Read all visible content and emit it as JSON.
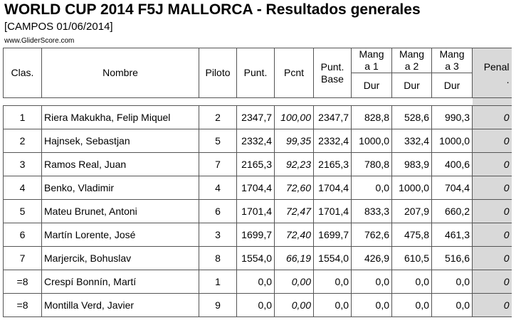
{
  "title": "WORLD CUP 2014 F5J MALLORCA - Resultados generales",
  "subtitle": "[CAMPOS 01/06/2014]",
  "site": "www.GliderScore.com",
  "headers": {
    "clas": "Clas.",
    "nombre": "Nombre",
    "piloto": "Piloto",
    "punt": "Punt.",
    "pcnt": "Pcnt",
    "punt_base_1": "Punt.",
    "punt_base_2": "Base",
    "manga1_a": "Mang",
    "manga1_b": "a 1",
    "manga2_a": "Mang",
    "manga2_b": "a 2",
    "manga3_a": "Mang",
    "manga3_b": "a 3",
    "dur": "Dur",
    "penal_a": "Penal",
    "penal_b": "."
  },
  "rows": [
    {
      "clas": "1",
      "nombre": "Riera Makukha, Felip Miquel",
      "piloto": "2",
      "punt": "2347,7",
      "pcnt": "100,00",
      "base": "2347,7",
      "m1": "828,8",
      "m2": "528,6",
      "m3": "990,3",
      "penal": "0"
    },
    {
      "clas": "2",
      "nombre": "Hajnsek, Sebastjan",
      "piloto": "5",
      "punt": "2332,4",
      "pcnt": "99,35",
      "base": "2332,4",
      "m1": "1000,0",
      "m2": "332,4",
      "m3": "1000,0",
      "penal": "0"
    },
    {
      "clas": "3",
      "nombre": "Ramos Real, Juan",
      "piloto": "7",
      "punt": "2165,3",
      "pcnt": "92,23",
      "base": "2165,3",
      "m1": "780,8",
      "m2": "983,9",
      "m3": "400,6",
      "penal": "0"
    },
    {
      "clas": "4",
      "nombre": "Benko, Vladimir",
      "piloto": "4",
      "punt": "1704,4",
      "pcnt": "72,60",
      "base": "1704,4",
      "m1": "0,0",
      "m2": "1000,0",
      "m3": "704,4",
      "penal": "0"
    },
    {
      "clas": "5",
      "nombre": "Mateu Brunet, Antoni",
      "piloto": "6",
      "punt": "1701,4",
      "pcnt": "72,47",
      "base": "1701,4",
      "m1": "833,3",
      "m2": "207,9",
      "m3": "660,2",
      "penal": "0"
    },
    {
      "clas": "6",
      "nombre": "Martín Lorente, José",
      "piloto": "3",
      "punt": "1699,7",
      "pcnt": "72,40",
      "base": "1699,7",
      "m1": "762,6",
      "m2": "475,8",
      "m3": "461,3",
      "penal": "0"
    },
    {
      "clas": "7",
      "nombre": "Marjercik, Bohuslav",
      "piloto": "8",
      "punt": "1554,0",
      "pcnt": "66,19",
      "base": "1554,0",
      "m1": "426,9",
      "m2": "610,5",
      "m3": "516,6",
      "penal": "0"
    },
    {
      "clas": "=8",
      "nombre": "Crespí Bonnín, Martí",
      "piloto": "1",
      "punt": "0,0",
      "pcnt": "0,00",
      "base": "0,0",
      "m1": "0,0",
      "m2": "0,0",
      "m3": "0,0",
      "penal": "0"
    },
    {
      "clas": "=8",
      "nombre": "Montilla Verd, Javier",
      "piloto": "9",
      "punt": "0,0",
      "pcnt": "0,00",
      "base": "0,0",
      "m1": "0,0",
      "m2": "0,0",
      "m3": "0,0",
      "penal": "0"
    }
  ]
}
